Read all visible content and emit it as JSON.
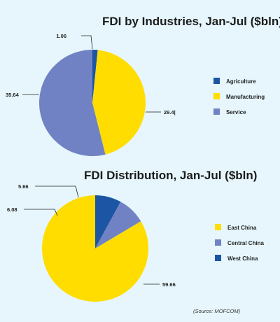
{
  "colors": {
    "background": "#e6f6fc",
    "agriculture": "#1b55a3",
    "manufacturing": "#ffdd00",
    "service": "#7082c3",
    "east": "#ffdd00",
    "central": "#7082c3",
    "west": "#1b55a3"
  },
  "chart_data": [
    {
      "type": "pie",
      "title": "FDI by Industries, Jan-Jul ($bln)",
      "series": [
        {
          "name": "Agriculture",
          "value": 1.06,
          "label": "1.06",
          "color": "#1b55a3"
        },
        {
          "name": "Manufacturing",
          "value": 29.4,
          "label": "29.4|",
          "color": "#ffdd00"
        },
        {
          "name": "Service",
          "value": 35.64,
          "label": "35.64",
          "color": "#7082c3"
        }
      ],
      "legend_position": "right"
    },
    {
      "type": "pie",
      "title": "FDI Distribution, Jan-Jul ($bln)",
      "series": [
        {
          "name": "East China",
          "value": 59.66,
          "label": "59.66",
          "color": "#ffdd00"
        },
        {
          "name": "Central China",
          "value": 6.08,
          "label": "6.08",
          "color": "#7082c3"
        },
        {
          "name": "West China",
          "value": 5.66,
          "label": "5.66",
          "color": "#1b55a3"
        }
      ],
      "legend_position": "right"
    }
  ],
  "source": "(Source: MOFCOM)"
}
